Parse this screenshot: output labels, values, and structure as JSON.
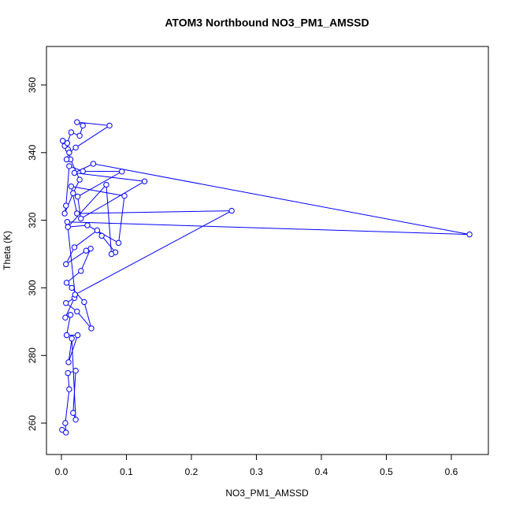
{
  "chart_data": {
    "type": "line",
    "title": "ATOM3 Northbound NO3_PM1_AMSSD",
    "x_label": "NO3_PM1_AMSSD",
    "y_label": "Theta (K)",
    "color": "#0000ff",
    "markers": true,
    "x": [
      0.001,
      0.007,
      0.006,
      0.012,
      0.01,
      0.022,
      0.018,
      0.022,
      0.016,
      0.011,
      0.025,
      0.008,
      0.014,
      0.006,
      0.02,
      0.007,
      0.024,
      0.046,
      0.035,
      0.016,
      0.008,
      0.03,
      0.045,
      0.038,
      0.007,
      0.02,
      0.055,
      0.062,
      0.083,
      0.077,
      0.069,
      0.01,
      0.04,
      0.088,
      0.097,
      0.015,
      0.024,
      0.262,
      0.021,
      0.009,
      0.628,
      0.049,
      0.02,
      0.128,
      0.03,
      0.025,
      0.093,
      0.033,
      0.012,
      0.007,
      0.005,
      0.018,
      0.028,
      0.014,
      0.01,
      0.005,
      0.002,
      0.009,
      0.015,
      0.028,
      0.033,
      0.024,
      0.074,
      0.022,
      0.012,
      0.008
    ],
    "values": [
      258,
      257.2,
      260,
      270,
      274.8,
      275.5,
      263,
      261,
      285,
      278,
      286,
      286,
      292,
      291.2,
      297,
      295.5,
      293,
      288,
      295.8,
      300,
      301.5,
      305,
      311.6,
      311,
      307,
      312,
      317,
      315.4,
      310.5,
      310,
      330.5,
      318,
      318.5,
      313.3,
      327.2,
      330,
      322,
      322.8,
      298,
      319.5,
      315.8,
      336.7,
      334,
      331.5,
      320.5,
      327,
      334.4,
      334.5,
      336,
      324.3,
      322,
      328,
      332,
      338,
      341,
      342,
      343.5,
      342.8,
      346,
      345,
      348,
      349,
      348,
      341.5,
      340,
      338
    ],
    "xlim": [
      -0.023,
      0.657
    ],
    "ylim": [
      250.7,
      371.4
    ],
    "xticks": [
      {
        "value": 0,
        "label": "0.0"
      },
      0.1,
      0.2,
      0.3,
      0.4,
      0.5,
      0.6
    ],
    "yticks": [
      260,
      280,
      300,
      320,
      340,
      360
    ]
  }
}
